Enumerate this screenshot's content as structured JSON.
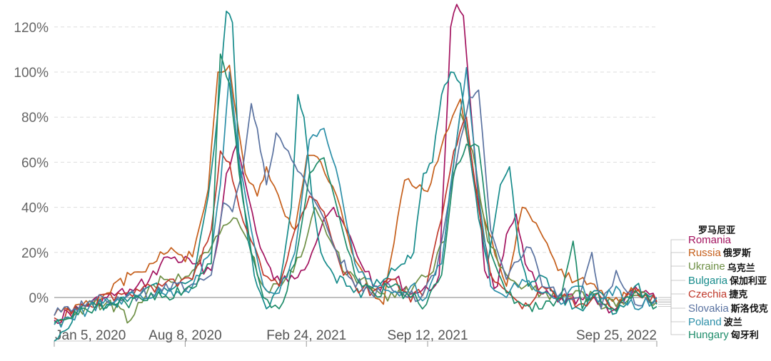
{
  "chart_data": {
    "type": "line",
    "title": "",
    "xlabel": "",
    "ylabel": "",
    "ylim": [
      -20,
      130
    ],
    "y_ticks": [
      {
        "value": 120,
        "label": "120%"
      },
      {
        "value": 100,
        "label": "100%"
      },
      {
        "value": 80,
        "label": "80%"
      },
      {
        "value": 60,
        "label": "60%"
      },
      {
        "value": 40,
        "label": "40%"
      },
      {
        "value": 20,
        "label": "20%"
      },
      {
        "value": 0,
        "label": "0%"
      }
    ],
    "x_range": [
      "2020-01-05",
      "2022-09-25"
    ],
    "x_ticks": [
      {
        "date": "2020-01-05",
        "label": "Jan 5, 2020"
      },
      {
        "date": "2020-08-08",
        "label": "Aug 8, 2020"
      },
      {
        "date": "2021-02-24",
        "label": "Feb 24, 2021"
      },
      {
        "date": "2021-09-12",
        "label": "Sep 12, 2021"
      },
      {
        "date": "2022-09-25",
        "label": "Sep 25, 2022"
      }
    ],
    "grid": "horizontal-dashed",
    "legend": "right-end-labels",
    "series": [
      {
        "name": "Romania",
        "name_zh": "罗马尼亚",
        "color": "#a3135f",
        "x": [
          "2020-01-05",
          "2020-02-15",
          "2020-04-01",
          "2020-05-15",
          "2020-06-10",
          "2020-07-10",
          "2020-08-20",
          "2020-09-20",
          "2020-10-01",
          "2020-10-15",
          "2020-11-01",
          "2020-11-20",
          "2020-12-10",
          "2021-01-01",
          "2021-01-25",
          "2021-02-15",
          "2021-03-05",
          "2021-03-25",
          "2021-04-10",
          "2021-05-01",
          "2021-05-25",
          "2021-06-20",
          "2021-07-20",
          "2021-08-20",
          "2021-09-15",
          "2021-10-01",
          "2021-10-10",
          "2021-10-20",
          "2021-10-30",
          "2021-11-10",
          "2021-11-25",
          "2021-12-15",
          "2022-01-05",
          "2022-01-20",
          "2022-02-05",
          "2022-02-20",
          "2022-03-15",
          "2022-04-15",
          "2022-05-20",
          "2022-06-20",
          "2022-07-20",
          "2022-08-20",
          "2022-09-25"
        ],
        "y": [
          -10,
          -5,
          0,
          3,
          8,
          18,
          15,
          12,
          25,
          55,
          68,
          45,
          22,
          8,
          7,
          12,
          20,
          35,
          40,
          30,
          15,
          5,
          8,
          2,
          3,
          10,
          60,
          120,
          130,
          125,
          75,
          12,
          5,
          28,
          37,
          15,
          2,
          -2,
          0,
          -3,
          -5,
          5,
          -2
        ]
      },
      {
        "name": "Russia",
        "name_zh": "俄罗斯",
        "color": "#c55e1a",
        "x": [
          "2020-01-05",
          "2020-02-15",
          "2020-04-01",
          "2020-05-10",
          "2020-06-10",
          "2020-07-10",
          "2020-08-20",
          "2020-09-15",
          "2020-10-01",
          "2020-10-20",
          "2020-11-15",
          "2020-12-05",
          "2020-12-20",
          "2021-01-15",
          "2021-02-05",
          "2021-02-25",
          "2021-03-20",
          "2021-04-15",
          "2021-05-10",
          "2021-06-05",
          "2021-07-01",
          "2021-08-05",
          "2021-09-12",
          "2021-10-10",
          "2021-11-05",
          "2021-11-25",
          "2021-12-20",
          "2022-01-20",
          "2022-02-15",
          "2022-03-10",
          "2022-04-15",
          "2022-05-20",
          "2022-06-20",
          "2022-07-20",
          "2022-08-20",
          "2022-09-25"
        ],
        "y": [
          -8,
          -3,
          2,
          10,
          15,
          20,
          18,
          48,
          100,
          103,
          55,
          45,
          58,
          40,
          30,
          63,
          60,
          45,
          20,
          5,
          -3,
          52,
          47,
          72,
          88,
          55,
          30,
          5,
          40,
          33,
          12,
          8,
          3,
          0,
          2,
          -1
        ]
      },
      {
        "name": "Ukraine",
        "name_zh": "乌克兰",
        "color": "#6e8f45",
        "x": [
          "2020-01-05",
          "2020-02-15",
          "2020-04-01",
          "2020-05-10",
          "2020-06-10",
          "2020-07-10",
          "2020-08-20",
          "2020-09-15",
          "2020-10-10",
          "2020-11-01",
          "2020-11-20",
          "2020-12-05",
          "2020-12-25",
          "2021-01-20",
          "2021-02-15",
          "2021-03-10",
          "2021-04-05",
          "2021-05-01",
          "2021-05-25",
          "2021-06-20",
          "2021-07-20",
          "2021-08-20",
          "2021-09-15",
          "2021-10-10",
          "2021-11-05",
          "2021-11-25",
          "2021-12-20",
          "2022-01-20",
          "2022-02-20",
          "2022-03-20",
          "2022-04-20",
          "2022-05-20",
          "2022-06-20",
          "2022-07-20",
          "2022-08-20",
          "2022-09-25"
        ],
        "y": [
          -12,
          -5,
          -2,
          -10,
          5,
          8,
          12,
          20,
          32,
          35,
          25,
          10,
          2,
          8,
          18,
          40,
          25,
          10,
          8,
          3,
          0,
          5,
          10,
          25,
          82,
          65,
          25,
          10,
          5,
          2,
          0,
          3,
          -2,
          -4,
          1,
          -2
        ]
      },
      {
        "name": "Bulgaria",
        "name_zh": "保加利亚",
        "color": "#168b8b",
        "x": [
          "2020-01-05",
          "2020-02-15",
          "2020-04-01",
          "2020-05-10",
          "2020-06-10",
          "2020-07-10",
          "2020-08-20",
          "2020-09-15",
          "2020-09-30",
          "2020-10-15",
          "2020-10-25",
          "2020-11-05",
          "2020-11-20",
          "2020-12-05",
          "2020-12-20",
          "2021-01-10",
          "2021-01-30",
          "2021-02-10",
          "2021-02-20",
          "2021-03-05",
          "2021-03-20",
          "2021-04-10",
          "2021-05-01",
          "2021-05-25",
          "2021-06-20",
          "2021-07-20",
          "2021-08-05",
          "2021-08-20",
          "2021-09-05",
          "2021-09-20",
          "2021-10-05",
          "2021-10-20",
          "2021-11-05",
          "2021-11-20",
          "2021-12-05",
          "2021-12-20",
          "2022-01-10",
          "2022-01-25",
          "2022-02-10",
          "2022-02-25",
          "2022-03-15",
          "2022-04-15",
          "2022-05-20",
          "2022-06-20",
          "2022-07-20",
          "2022-08-20",
          "2022-09-25"
        ],
        "y": [
          -20,
          -5,
          -3,
          0,
          5,
          3,
          8,
          45,
          80,
          127,
          122,
          60,
          25,
          5,
          -5,
          5,
          40,
          90,
          80,
          45,
          20,
          10,
          5,
          0,
          8,
          12,
          15,
          20,
          55,
          60,
          90,
          100,
          95,
          65,
          35,
          15,
          50,
          58,
          20,
          5,
          10,
          0,
          -5,
          3,
          -7,
          5,
          -3
        ]
      },
      {
        "name": "Czechia",
        "name_zh": "捷克",
        "color": "#c0392b",
        "x": [
          "2020-01-05",
          "2020-03-01",
          "2020-05-01",
          "2020-07-01",
          "2020-08-20",
          "2020-09-20",
          "2020-10-05",
          "2020-10-20",
          "2020-11-05",
          "2020-11-25",
          "2020-12-15",
          "2021-01-10",
          "2021-02-05",
          "2021-03-01",
          "2021-03-25",
          "2021-04-20",
          "2021-05-15",
          "2021-06-15",
          "2021-07-15",
          "2021-08-15",
          "2021-09-10",
          "2021-10-05",
          "2021-10-25",
          "2021-11-15",
          "2021-12-05",
          "2021-12-25",
          "2022-01-20",
          "2022-02-15",
          "2022-03-20",
          "2022-04-20",
          "2022-05-20",
          "2022-06-20",
          "2022-07-20",
          "2022-08-20",
          "2022-09-25"
        ],
        "y": [
          -9,
          -3,
          2,
          5,
          8,
          30,
          65,
          60,
          40,
          25,
          10,
          5,
          30,
          45,
          38,
          15,
          5,
          3,
          8,
          -2,
          5,
          35,
          65,
          80,
          40,
          10,
          3,
          -5,
          5,
          0,
          -3,
          2,
          -6,
          4,
          -2
        ]
      },
      {
        "name": "Slovakia",
        "name_zh": "斯洛伐克",
        "color": "#5a72a0",
        "x": [
          "2020-01-05",
          "2020-03-01",
          "2020-05-01",
          "2020-07-01",
          "2020-08-20",
          "2020-09-20",
          "2020-10-10",
          "2020-10-25",
          "2020-11-10",
          "2020-11-25",
          "2020-12-05",
          "2020-12-20",
          "2021-01-05",
          "2021-01-25",
          "2021-02-15",
          "2021-03-05",
          "2021-03-25",
          "2021-04-15",
          "2021-05-10",
          "2021-06-10",
          "2021-07-10",
          "2021-08-10",
          "2021-09-05",
          "2021-09-25",
          "2021-10-15",
          "2021-11-05",
          "2021-11-20",
          "2021-12-05",
          "2021-12-25",
          "2022-01-20",
          "2022-02-15",
          "2022-03-01",
          "2022-03-20",
          "2022-04-20",
          "2022-05-20",
          "2022-06-10",
          "2022-06-25",
          "2022-07-20",
          "2022-08-20",
          "2022-09-25"
        ],
        "y": [
          -8,
          -2,
          0,
          3,
          6,
          10,
          42,
          38,
          55,
          86,
          75,
          50,
          73,
          65,
          55,
          45,
          35,
          20,
          8,
          2,
          6,
          0,
          2,
          10,
          40,
          70,
          89,
          92,
          30,
          8,
          18,
          22,
          5,
          2,
          0,
          20,
          -5,
          12,
          -3,
          0
        ]
      },
      {
        "name": "Poland",
        "name_zh": "波兰",
        "color": "#2c8fa8",
        "x": [
          "2020-01-05",
          "2020-03-01",
          "2020-05-01",
          "2020-07-01",
          "2020-08-20",
          "2020-09-20",
          "2020-10-05",
          "2020-10-20",
          "2020-11-05",
          "2020-11-25",
          "2020-12-15",
          "2021-01-10",
          "2021-02-05",
          "2021-03-01",
          "2021-03-25",
          "2021-04-20",
          "2021-05-15",
          "2021-06-15",
          "2021-07-15",
          "2021-08-15",
          "2021-09-10",
          "2021-10-05",
          "2021-10-25",
          "2021-11-15",
          "2021-12-05",
          "2021-12-25",
          "2022-01-20",
          "2022-02-15",
          "2022-03-20",
          "2022-04-20",
          "2022-05-20",
          "2022-06-20",
          "2022-07-20",
          "2022-08-20",
          "2022-09-25"
        ],
        "y": [
          -12,
          -5,
          0,
          2,
          5,
          20,
          50,
          100,
          60,
          30,
          5,
          2,
          20,
          70,
          75,
          50,
          15,
          5,
          2,
          5,
          0,
          15,
          60,
          102,
          45,
          5,
          0,
          8,
          2,
          -3,
          5,
          -2,
          5,
          -5,
          0
        ]
      },
      {
        "name": "Hungary",
        "name_zh": "匈牙利",
        "color": "#1e8c6a",
        "x": [
          "2020-01-05",
          "2020-03-01",
          "2020-05-01",
          "2020-07-01",
          "2020-08-20",
          "2020-09-20",
          "2020-10-05",
          "2020-10-20",
          "2020-11-05",
          "2020-11-25",
          "2020-12-15",
          "2021-01-10",
          "2021-02-05",
          "2021-03-01",
          "2021-03-25",
          "2021-04-20",
          "2021-05-15",
          "2021-06-15",
          "2021-07-15",
          "2021-08-15",
          "2021-09-10",
          "2021-10-05",
          "2021-10-25",
          "2021-11-15",
          "2021-12-05",
          "2021-12-25",
          "2022-01-20",
          "2022-02-15",
          "2022-03-20",
          "2022-04-20",
          "2022-05-10",
          "2022-05-25",
          "2022-06-20",
          "2022-07-20",
          "2022-08-20",
          "2022-09-25"
        ],
        "y": [
          -11,
          -6,
          -2,
          0,
          4,
          15,
          108,
          95,
          55,
          20,
          0,
          -5,
          15,
          55,
          62,
          35,
          10,
          2,
          5,
          0,
          -3,
          10,
          55,
          68,
          67,
          20,
          2,
          -3,
          -5,
          0,
          25,
          -5,
          2,
          -6,
          3,
          -4
        ]
      }
    ]
  }
}
